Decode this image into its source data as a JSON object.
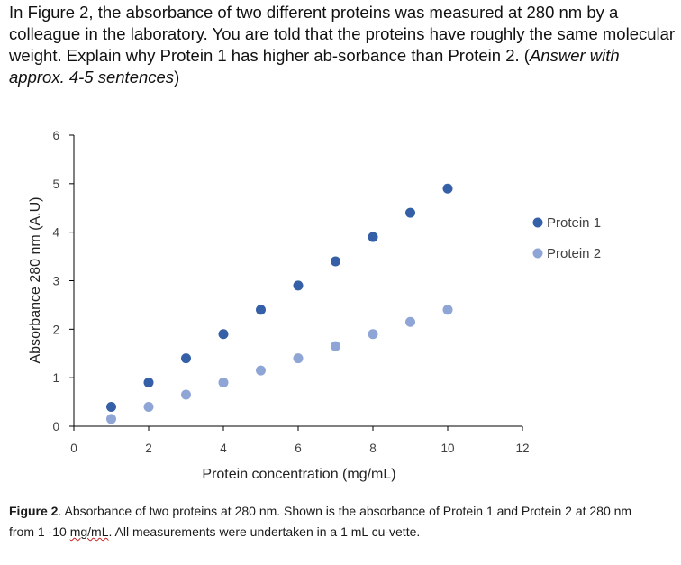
{
  "question": {
    "text": "In Figure 2, the absorbance of two different proteins was measured at 280 nm by a colleague in the laboratory. You are told that the proteins have roughly the same molecular weight. Explain why Protein 1 has higher ab-sorbance than Protein 2. (",
    "emphasis": "Answer with approx. 4-5 sentences",
    "close": ")"
  },
  "caption": {
    "label": "Figure 2",
    "text_before": ". Absorbance of two proteins at 280 nm. Shown is the absorbance of Protein 1 and Protein 2 at 280 nm from 1 -10 ",
    "unit": "mg/mL",
    "text_after": ". All measurements were undertaken in a 1 mL cu-vette."
  },
  "chart_data": {
    "type": "scatter",
    "title": "",
    "xlabel": "Protein concentration (mg/mL)",
    "ylabel": "Absorbance 280 nm (A.U)",
    "xlim": [
      0,
      12
    ],
    "ylim": [
      0,
      6
    ],
    "xticks": [
      0,
      2,
      4,
      6,
      8,
      10,
      12
    ],
    "yticks": [
      0,
      1,
      2,
      3,
      4,
      5,
      6
    ],
    "grid": false,
    "legend_position": "right",
    "series": [
      {
        "name": "Protein 1",
        "color": "#3560a8",
        "x": [
          1,
          2,
          3,
          4,
          5,
          6,
          7,
          8,
          9,
          10
        ],
        "y": [
          0.4,
          0.9,
          1.4,
          1.9,
          2.4,
          2.9,
          3.4,
          3.9,
          4.4,
          4.9
        ]
      },
      {
        "name": "Protein 2",
        "color": "#8ea5d6",
        "x": [
          1,
          2,
          3,
          4,
          5,
          6,
          7,
          8,
          9,
          10
        ],
        "y": [
          0.15,
          0.4,
          0.65,
          0.9,
          1.15,
          1.4,
          1.65,
          1.9,
          2.15,
          2.4
        ]
      }
    ]
  }
}
